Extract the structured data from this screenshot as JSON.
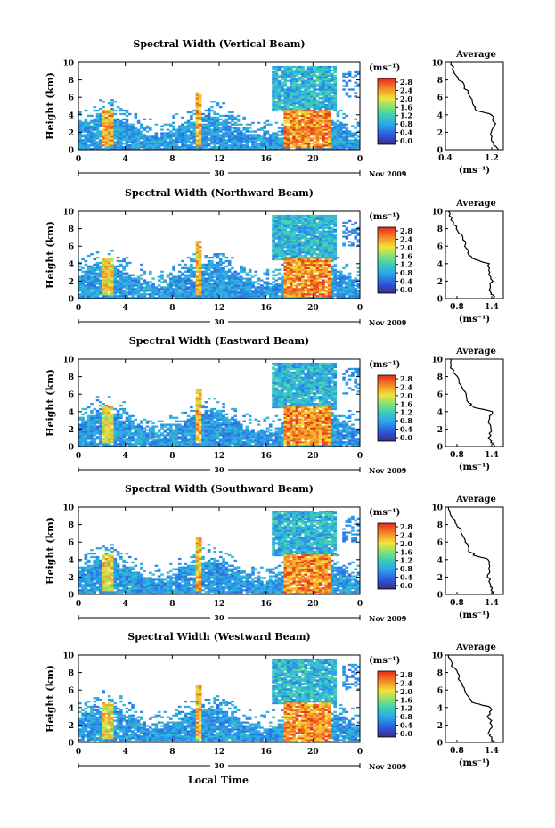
{
  "figure": {
    "x_axis_title": "Local Time",
    "y_axis_title": "Height (km)",
    "colorbar_unit": "(ms⁻¹)",
    "colorbar_ticks": [
      "2.8",
      "2.4",
      "2.0",
      "1.6",
      "1.2",
      "0.8",
      "0.4",
      "0.0"
    ],
    "time_ticks": [
      "0",
      "4",
      "8",
      "12",
      "16",
      "20",
      "0"
    ],
    "height_ticks": [
      "10",
      "8",
      "6",
      "4",
      "2",
      "0"
    ],
    "date_day": "30",
    "date_month_year": "Nov 2009",
    "average_title": "Average",
    "average_xlabel": "(ms⁻¹)"
  },
  "chart_data": [
    {
      "type": "heatmap",
      "title": "Spectral Width (Vertical Beam)",
      "xlabel": "Local Time",
      "ylabel": "Height (km)",
      "xlim": [
        0,
        24
      ],
      "ylim": [
        0,
        10
      ],
      "clim": [
        0.0,
        2.8
      ],
      "colorbar_label": "(ms⁻¹)",
      "features": [
        {
          "time": [
            2,
            3
          ],
          "height": [
            0.5,
            4.5
          ],
          "level": 2.6
        },
        {
          "time": [
            10,
            10.6
          ],
          "height": [
            0.5,
            6.5
          ],
          "level": 2.6
        },
        {
          "time": [
            16.5,
            22
          ],
          "height": [
            4.5,
            9.5
          ],
          "level": 1.0
        },
        {
          "time": [
            17.5,
            21.5
          ],
          "height": [
            0.2,
            4.5
          ],
          "level": 2.8
        }
      ],
      "average_profile": {
        "x_ticks": [
          "0.4",
          "1.2"
        ],
        "xlim": [
          0.4,
          1.4
        ],
        "height": [
          0.0,
          0.5,
          1.0,
          2.0,
          3.0,
          4.0,
          4.5,
          5.0,
          6.0,
          7.0,
          8.0,
          9.0,
          10.0
        ],
        "value": [
          1.3,
          1.25,
          1.2,
          1.2,
          1.25,
          1.2,
          0.95,
          0.9,
          0.85,
          0.75,
          0.65,
          0.55,
          0.5
        ]
      }
    },
    {
      "type": "heatmap",
      "title": "Spectral Width (Northward Beam)",
      "xlabel": "Local Time",
      "ylabel": "Height (km)",
      "xlim": [
        0,
        24
      ],
      "ylim": [
        0,
        10
      ],
      "clim": [
        0.0,
        2.8
      ],
      "colorbar_label": "(ms⁻¹)",
      "features": [
        {
          "time": [
            2,
            3
          ],
          "height": [
            0.5,
            4.5
          ],
          "level": 2.4
        },
        {
          "time": [
            10,
            10.6
          ],
          "height": [
            0.5,
            6.5
          ],
          "level": 2.6
        },
        {
          "time": [
            16.5,
            22
          ],
          "height": [
            4.5,
            9.5
          ],
          "level": 1.0
        },
        {
          "time": [
            17.5,
            21.5
          ],
          "height": [
            0.2,
            4.5
          ],
          "level": 2.8
        }
      ],
      "average_profile": {
        "x_ticks": [
          "0.8",
          "1.4"
        ],
        "xlim": [
          0.6,
          1.6
        ],
        "height": [
          0.0,
          0.5,
          1.0,
          2.0,
          3.0,
          4.0,
          4.5,
          5.0,
          6.0,
          7.0,
          8.0,
          9.0,
          10.0
        ],
        "value": [
          1.45,
          1.4,
          1.35,
          1.4,
          1.35,
          1.35,
          1.1,
          1.0,
          0.95,
          0.9,
          0.8,
          0.7,
          0.65
        ]
      }
    },
    {
      "type": "heatmap",
      "title": "Spectral Width (Eastward Beam)",
      "xlabel": "Local Time",
      "ylabel": "Height (km)",
      "xlim": [
        0,
        24
      ],
      "ylim": [
        0,
        10
      ],
      "clim": [
        0.0,
        2.8
      ],
      "colorbar_label": "(ms⁻¹)",
      "features": [
        {
          "time": [
            2,
            3
          ],
          "height": [
            0.5,
            4.5
          ],
          "level": 2.4
        },
        {
          "time": [
            10,
            10.6
          ],
          "height": [
            0.5,
            6.5
          ],
          "level": 2.6
        },
        {
          "time": [
            16.5,
            22
          ],
          "height": [
            4.5,
            9.5
          ],
          "level": 1.0
        },
        {
          "time": [
            17.5,
            21.5
          ],
          "height": [
            0.2,
            4.5
          ],
          "level": 2.8
        }
      ],
      "average_profile": {
        "x_ticks": [
          "0.8",
          "1.4"
        ],
        "xlim": [
          0.6,
          1.6
        ],
        "height": [
          0.0,
          0.5,
          1.0,
          2.0,
          3.0,
          4.0,
          4.5,
          5.0,
          6.0,
          7.0,
          8.0,
          9.0,
          10.0
        ],
        "value": [
          1.45,
          1.4,
          1.35,
          1.4,
          1.35,
          1.4,
          1.1,
          1.0,
          0.95,
          0.85,
          0.8,
          0.7,
          0.7
        ]
      }
    },
    {
      "type": "heatmap",
      "title": "Spectral Width (Southward Beam)",
      "xlabel": "Local Time",
      "ylabel": "Height (km)",
      "xlim": [
        0,
        24
      ],
      "ylim": [
        0,
        10
      ],
      "clim": [
        0.0,
        2.8
      ],
      "colorbar_label": "(ms⁻¹)",
      "features": [
        {
          "time": [
            2,
            3
          ],
          "height": [
            0.5,
            4.5
          ],
          "level": 2.4
        },
        {
          "time": [
            10,
            10.6
          ],
          "height": [
            0.5,
            6.5
          ],
          "level": 2.6
        },
        {
          "time": [
            16.5,
            22
          ],
          "height": [
            4.5,
            9.5
          ],
          "level": 1.0
        },
        {
          "time": [
            17.5,
            21.5
          ],
          "height": [
            0.2,
            4.5
          ],
          "level": 2.8
        }
      ],
      "average_profile": {
        "x_ticks": [
          "0.8",
          "1.4"
        ],
        "xlim": [
          0.6,
          1.6
        ],
        "height": [
          0.0,
          0.5,
          1.0,
          2.0,
          3.0,
          4.0,
          4.5,
          5.0,
          6.0,
          7.0,
          8.0,
          9.0,
          10.0
        ],
        "value": [
          1.45,
          1.4,
          1.4,
          1.35,
          1.35,
          1.35,
          1.1,
          1.0,
          0.95,
          0.9,
          0.8,
          0.7,
          0.65
        ]
      }
    },
    {
      "type": "heatmap",
      "title": "Spectral Width (Westward Beam)",
      "xlabel": "Local Time",
      "ylabel": "Height (km)",
      "xlim": [
        0,
        24
      ],
      "ylim": [
        0,
        10
      ],
      "clim": [
        0.0,
        2.8
      ],
      "colorbar_label": "(ms⁻¹)",
      "features": [
        {
          "time": [
            2,
            3
          ],
          "height": [
            0.5,
            4.5
          ],
          "level": 2.4
        },
        {
          "time": [
            10,
            10.6
          ],
          "height": [
            0.5,
            6.5
          ],
          "level": 2.6
        },
        {
          "time": [
            16.5,
            22
          ],
          "height": [
            4.5,
            9.5
          ],
          "level": 1.0
        },
        {
          "time": [
            17.5,
            21.5
          ],
          "height": [
            0.2,
            4.5
          ],
          "level": 2.8
        }
      ],
      "average_profile": {
        "x_ticks": [
          "0.8",
          "1.4"
        ],
        "xlim": [
          0.6,
          1.6
        ],
        "height": [
          0.0,
          0.5,
          1.0,
          2.0,
          3.0,
          4.0,
          4.5,
          5.0,
          6.0,
          7.0,
          8.0,
          9.0,
          10.0
        ],
        "value": [
          1.45,
          1.4,
          1.35,
          1.4,
          1.35,
          1.4,
          1.1,
          1.0,
          0.95,
          0.85,
          0.8,
          0.7,
          0.65
        ]
      }
    }
  ]
}
